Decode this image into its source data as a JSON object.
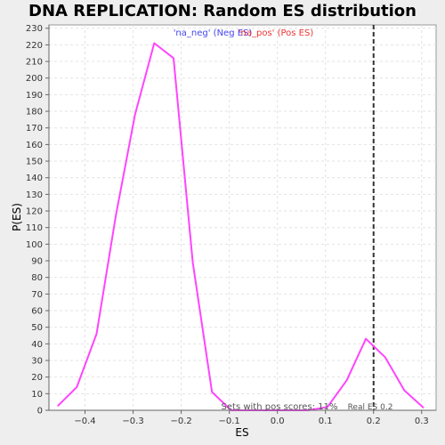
{
  "chart_data": {
    "type": "line",
    "title": "DNA REPLICATION: Random ES distribution",
    "xlabel": "ES",
    "ylabel": "P(ES)",
    "xlim": [
      -0.475,
      0.33
    ],
    "ylim": [
      0,
      232
    ],
    "x_ticks": [
      -0.4,
      -0.3,
      -0.2,
      -0.1,
      0.0,
      0.1,
      0.2,
      0.3
    ],
    "x_tick_labels": [
      "−0.4",
      "−0.3",
      "−0.2",
      "−0.1",
      "0.0",
      "0.1",
      "0.2",
      "0.3"
    ],
    "y_ticks": [
      0,
      10,
      20,
      30,
      40,
      50,
      60,
      70,
      80,
      90,
      100,
      110,
      120,
      130,
      140,
      150,
      160,
      170,
      180,
      190,
      200,
      210,
      220,
      230
    ],
    "grid": true,
    "series": [
      {
        "name": "",
        "color": "#ff44ff",
        "x": [
          -0.457,
          -0.417,
          -0.376,
          -0.336,
          -0.296,
          -0.256,
          -0.216,
          -0.176,
          -0.136,
          -0.096,
          -0.056,
          -0.016,
          0.024,
          0.064,
          0.104,
          0.144,
          0.184,
          0.224,
          0.264,
          0.304
        ],
        "y": [
          2.5,
          14,
          46,
          117,
          178,
          221,
          212,
          89,
          11,
          0,
          0,
          0,
          0,
          0,
          2,
          18,
          43,
          32,
          12,
          1.5
        ]
      }
    ],
    "legend": [
      {
        "label": "'na_neg' (Neg ES)",
        "color": "#4444ee"
      },
      {
        "label": "'na_pos' (Pos ES)",
        "color": "#ee3333"
      }
    ],
    "legend_position": "top-center",
    "annotations": {
      "real_es_x": 0.2,
      "real_es_label": "Real ES 0.2",
      "pos_scores_label": "Sets with pos scores: 11%"
    }
  }
}
